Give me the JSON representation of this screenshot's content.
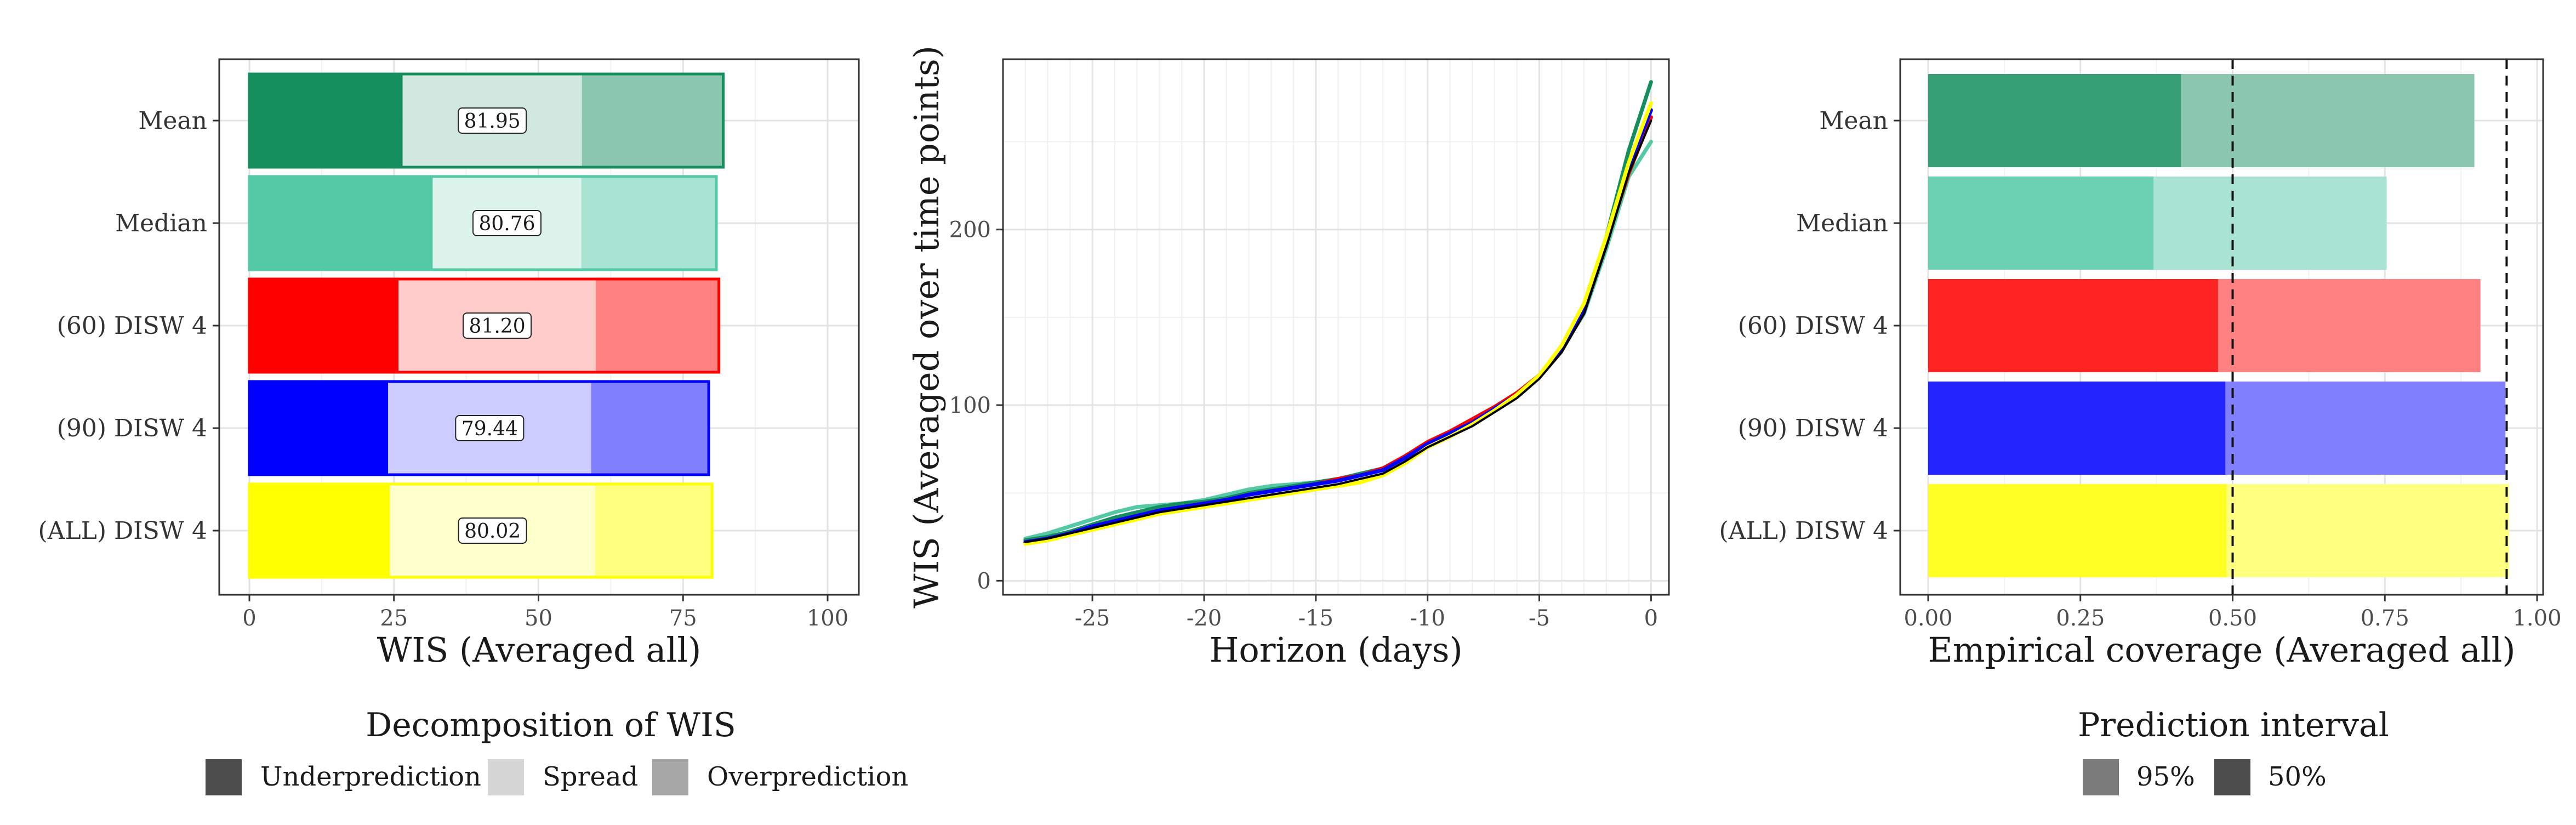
{
  "chart_data": [
    {
      "type": "bar",
      "stacked": true,
      "orientation": "horizontal",
      "xlabel": "WIS (Averaged all)",
      "ylabel": "",
      "xlim": [
        0,
        100
      ],
      "xticks": [
        0,
        25,
        50,
        75,
        100
      ],
      "categories": [
        "Mean",
        "Median",
        "(60) DISW 4",
        "(90) DISW 4",
        "(ALL) DISW 4"
      ],
      "colors": [
        "#148e5d",
        "#53c9a5",
        "#ff0000",
        "#0000ff",
        "#ffff00"
      ],
      "series": [
        {
          "name": "Underprediction",
          "values": [
            26.5,
            31.7,
            25.8,
            24.0,
            24.3
          ]
        },
        {
          "name": "Spread",
          "values": [
            31.0,
            25.7,
            34.1,
            35.1,
            35.5
          ]
        },
        {
          "name": "Overprediction",
          "values": [
            24.45,
            23.36,
            21.3,
            20.34,
            20.22
          ]
        }
      ],
      "totals": [
        "81.95",
        "80.76",
        "81.20",
        "79.44",
        "80.02"
      ],
      "legend": {
        "title": "Decomposition of WIS",
        "position": "bottom",
        "items": [
          "Underprediction",
          "Spread",
          "Overprediction"
        ]
      },
      "grid": true
    },
    {
      "type": "line",
      "xlabel": "Horizon (days)",
      "ylabel": "WIS (Averaged over time points)",
      "xlim": [
        -29,
        0.8
      ],
      "ylim": [
        -8,
        297
      ],
      "xticks": [
        -25,
        -20,
        -15,
        -10,
        -5,
        0
      ],
      "xtick_labels": [
        "-25",
        "-20",
        "-15",
        "-10",
        "-5",
        "0"
      ],
      "yticks": [
        0,
        100,
        200
      ],
      "x": [
        -28,
        -27,
        -26,
        -25,
        -24,
        -23,
        -22,
        -21,
        -20,
        -19,
        -18,
        -17,
        -16,
        -15,
        -14,
        -13,
        -12,
        -11,
        -10,
        -9,
        -8,
        -7,
        -6,
        -5,
        -4,
        -3,
        -2,
        -1,
        0
      ],
      "series": [
        {
          "name": "Mean",
          "color": "#148e5d",
          "values": [
            23,
            25,
            28,
            32,
            36,
            39,
            42,
            44,
            45,
            47,
            50,
            52,
            54,
            56,
            58,
            61,
            64,
            70,
            77,
            84,
            90,
            98,
            106,
            116,
            132,
            155,
            196,
            245,
            284
          ]
        },
        {
          "name": "Median",
          "color": "#53c9a5",
          "values": [
            24,
            27,
            31,
            35,
            39,
            42,
            43,
            44,
            46,
            49,
            52,
            54,
            55,
            56,
            58,
            60,
            63,
            70,
            78,
            85,
            91,
            98,
            106,
            117,
            132,
            152,
            189,
            230,
            250
          ]
        },
        {
          "name": "(60) DISW 4",
          "color": "#ff0000",
          "values": [
            22,
            24,
            27,
            31,
            34,
            37,
            40,
            42,
            44,
            46,
            49,
            51,
            53,
            55,
            58,
            60,
            64,
            71,
            79,
            85,
            92,
            99,
            107,
            117,
            133,
            156,
            193,
            232,
            264
          ]
        },
        {
          "name": "(90) DISW 4",
          "color": "#0000ff",
          "values": [
            22,
            24,
            27,
            31,
            34,
            37,
            40,
            42,
            44,
            46,
            49,
            51,
            53,
            55,
            57,
            60,
            63,
            70,
            78,
            84,
            90,
            98,
            106,
            116,
            131,
            153,
            193,
            236,
            268
          ]
        },
        {
          "name": "(ALL) DISW 4",
          "color": "#ffff00",
          "values": [
            21,
            23,
            26,
            29,
            32,
            35,
            38,
            40,
            42,
            44,
            46,
            48,
            50,
            52,
            54,
            56,
            60,
            67,
            76,
            82,
            89,
            97,
            106,
            117,
            134,
            158,
            196,
            238,
            272
          ]
        },
        {
          "name": "",
          "color": "#000000",
          "values": [
            22,
            24,
            27,
            30,
            33,
            36,
            39,
            41,
            43,
            45,
            47,
            49,
            51,
            53,
            55,
            58,
            61,
            68,
            76,
            82,
            88,
            96,
            104,
            115,
            130,
            152,
            190,
            232,
            262
          ]
        }
      ],
      "grid": true
    },
    {
      "type": "bar",
      "orientation": "horizontal",
      "overlapping": true,
      "xlabel": "Empirical coverage (Averaged all)",
      "ylabel": "",
      "xlim": [
        0,
        1
      ],
      "xticks": [
        0,
        0.25,
        0.5,
        0.75,
        1
      ],
      "xtick_labels": [
        "0.00",
        "0.25",
        "0.50",
        "0.75",
        "1.00"
      ],
      "categories": [
        "Mean",
        "Median",
        "(60) DISW 4",
        "(90) DISW 4",
        "(ALL) DISW 4"
      ],
      "colors": [
        "#148e5d",
        "#53c9a5",
        "#ff0000",
        "#0000ff",
        "#ffff00"
      ],
      "series": [
        {
          "name": "95%",
          "values": [
            0.897,
            0.753,
            0.907,
            0.948,
            0.954
          ]
        },
        {
          "name": "50%",
          "values": [
            0.415,
            0.37,
            0.476,
            0.488,
            0.49
          ]
        }
      ],
      "reference_lines": [
        0.5,
        0.95
      ],
      "legend": {
        "title": "Prediction interval",
        "position": "bottom",
        "items": [
          "95%",
          "50%"
        ]
      },
      "grid": true
    }
  ]
}
